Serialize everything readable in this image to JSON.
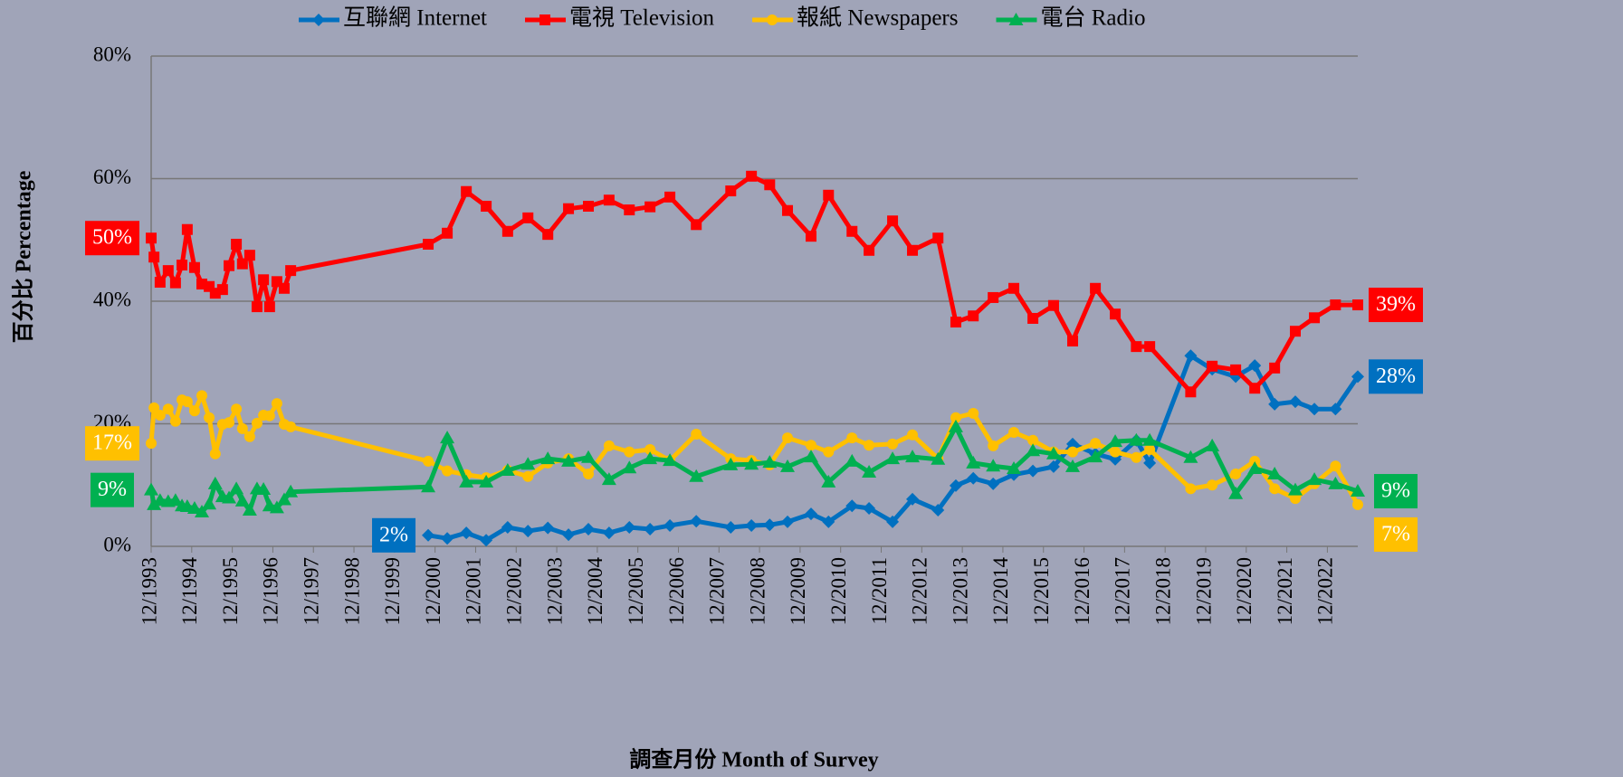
{
  "chart_data": {
    "type": "line",
    "y_label": "百分比 Percentage",
    "x_label": "調查月份 Month of Survey",
    "x": [
      1993.92,
      1993.99,
      1994.14,
      1994.34,
      1994.52,
      1994.68,
      1994.81,
      1994.99,
      1995.17,
      1995.35,
      1995.5,
      1995.68,
      1995.84,
      1996.02,
      1996.17,
      1996.35,
      1996.53,
      1996.69,
      1996.84,
      1997.02,
      1997.2,
      1997.36,
      2000.75,
      2001.22,
      2001.69,
      2002.18,
      2002.71,
      2003.21,
      2003.7,
      2004.21,
      2004.7,
      2005.21,
      2005.71,
      2006.22,
      2006.71,
      2007.36,
      2008.21,
      2008.72,
      2009.17,
      2009.61,
      2010.19,
      2010.62,
      2011.2,
      2011.62,
      2012.2,
      2012.69,
      2013.32,
      2013.76,
      2014.19,
      2014.68,
      2015.19,
      2015.66,
      2016.17,
      2016.64,
      2017.2,
      2017.69,
      2018.21,
      2018.54,
      2019.55,
      2020.08,
      2020.66,
      2021.13,
      2021.62,
      2022.13,
      2022.6,
      2023.12,
      2023.67
    ],
    "xlim": [
      1993.92,
      2023.67
    ],
    "xticks": [
      {
        "value": 1993.92,
        "label": "12/1993"
      },
      {
        "value": 1994.92,
        "label": "12/1994"
      },
      {
        "value": 1995.92,
        "label": "12/1995"
      },
      {
        "value": 1996.92,
        "label": "12/1996"
      },
      {
        "value": 1997.92,
        "label": "12/1997"
      },
      {
        "value": 1998.92,
        "label": "12/1998"
      },
      {
        "value": 1999.92,
        "label": "12/1999"
      },
      {
        "value": 2000.92,
        "label": "12/2000"
      },
      {
        "value": 2001.92,
        "label": "12/2001"
      },
      {
        "value": 2002.92,
        "label": "12/2002"
      },
      {
        "value": 2003.92,
        "label": "12/2003"
      },
      {
        "value": 2004.92,
        "label": "12/2004"
      },
      {
        "value": 2005.92,
        "label": "12/2005"
      },
      {
        "value": 2006.92,
        "label": "12/2006"
      },
      {
        "value": 2007.92,
        "label": "12/2007"
      },
      {
        "value": 2008.92,
        "label": "12/2008"
      },
      {
        "value": 2009.92,
        "label": "12/2009"
      },
      {
        "value": 2010.92,
        "label": "12/2010"
      },
      {
        "value": 2011.92,
        "label": "12/2011"
      },
      {
        "value": 2012.92,
        "label": "12/2012"
      },
      {
        "value": 2013.92,
        "label": "12/2013"
      },
      {
        "value": 2014.92,
        "label": "12/2014"
      },
      {
        "value": 2015.92,
        "label": "12/2015"
      },
      {
        "value": 2016.92,
        "label": "12/2016"
      },
      {
        "value": 2017.92,
        "label": "12/2017"
      },
      {
        "value": 2018.92,
        "label": "12/2018"
      },
      {
        "value": 2019.92,
        "label": "12/2019"
      },
      {
        "value": 2020.92,
        "label": "12/2020"
      },
      {
        "value": 2021.92,
        "label": "12/2021"
      },
      {
        "value": 2022.92,
        "label": "12/2022"
      }
    ],
    "ylim": [
      0,
      80
    ],
    "yticks": [
      {
        "value": 0,
        "label": "0%"
      },
      {
        "value": 20,
        "label": "20%"
      },
      {
        "value": 40,
        "label": "40%"
      },
      {
        "value": 60,
        "label": "60%"
      },
      {
        "value": 80,
        "label": "80%"
      }
    ],
    "grid": true,
    "legend": "top",
    "series": [
      {
        "name": "互聯網 Internet",
        "color": "#0070c0",
        "marker": "diamond",
        "first_label": "2%",
        "last_label": "28%",
        "values": [
          null,
          null,
          null,
          null,
          null,
          null,
          null,
          null,
          null,
          null,
          null,
          null,
          null,
          null,
          null,
          null,
          null,
          null,
          null,
          null,
          null,
          null,
          1.8,
          1.3,
          2.2,
          1.0,
          3.1,
          2.5,
          3.0,
          1.9,
          2.8,
          2.2,
          3.1,
          2.8,
          3.4,
          4.1,
          3.1,
          3.4,
          3.5,
          4.0,
          5.3,
          4.0,
          6.6,
          6.2,
          4.0,
          7.7,
          5.9,
          9.9,
          11.1,
          10.2,
          11.7,
          12.3,
          13.0,
          16.7,
          15.1,
          14.2,
          17.3,
          13.6,
          31.1,
          28.9,
          27.7,
          29.5,
          23.2,
          23.6,
          22.4,
          22.4,
          27.7
        ]
      },
      {
        "name": "電視 Television",
        "color": "#ff0000",
        "marker": "square",
        "first_label": "50%",
        "last_label": "39%",
        "values": [
          50.3,
          47.2,
          43.1,
          45.0,
          43.0,
          45.9,
          51.7,
          45.5,
          42.8,
          42.4,
          41.3,
          41.9,
          45.8,
          49.3,
          46.1,
          47.5,
          39.1,
          43.5,
          39.1,
          43.2,
          42.1,
          45.0,
          49.3,
          51.1,
          57.9,
          55.5,
          51.4,
          53.6,
          50.9,
          55.1,
          55.5,
          56.5,
          54.9,
          55.4,
          57.0,
          52.5,
          58.0,
          60.4,
          59.0,
          54.8,
          50.6,
          57.3,
          51.4,
          48.3,
          53.1,
          48.3,
          50.3,
          36.6,
          37.6,
          40.6,
          42.1,
          37.2,
          39.3,
          33.5,
          42.1,
          37.9,
          32.6,
          32.6,
          25.2,
          29.4,
          28.8,
          25.8,
          29.1,
          35.1,
          37.3,
          39.4,
          39.4
        ]
      },
      {
        "name": "報紙 Newspapers",
        "color": "#ffc000",
        "marker": "circle",
        "first_label": "17%",
        "last_label": "7%",
        "values": [
          16.8,
          22.6,
          21.4,
          22.4,
          20.4,
          23.9,
          23.6,
          22.1,
          24.6,
          21.0,
          15.1,
          19.9,
          20.2,
          22.4,
          19.2,
          17.9,
          20.1,
          21.4,
          21.3,
          23.3,
          19.9,
          19.5,
          13.9,
          12.3,
          11.7,
          11.2,
          12.4,
          11.4,
          13.6,
          14.3,
          11.8,
          16.4,
          15.4,
          15.8,
          14.0,
          18.3,
          14.3,
          14.0,
          13.3,
          17.7,
          16.5,
          15.4,
          17.7,
          16.5,
          16.7,
          18.2,
          14.3,
          21.0,
          21.7,
          16.4,
          18.6,
          17.3,
          15.4,
          15.4,
          16.8,
          15.4,
          14.5,
          15.8,
          9.4,
          10.0,
          11.8,
          13.9,
          9.4,
          7.8,
          10.2,
          13.1,
          6.8
        ]
      },
      {
        "name": "電台 Radio",
        "color": "#00b050",
        "marker": "triangle",
        "first_label": "9%",
        "last_label": "9%",
        "values": [
          9.2,
          6.8,
          7.5,
          7.3,
          7.5,
          6.6,
          6.5,
          6.2,
          5.6,
          6.9,
          10.2,
          8.1,
          7.9,
          9.4,
          7.4,
          5.9,
          9.4,
          9.3,
          6.6,
          6.3,
          7.6,
          8.9,
          9.7,
          17.7,
          10.5,
          10.5,
          12.4,
          13.4,
          14.3,
          13.9,
          14.5,
          10.9,
          12.8,
          14.3,
          14.0,
          11.4,
          13.3,
          13.4,
          13.7,
          13.0,
          14.6,
          10.5,
          13.9,
          12.1,
          14.3,
          14.6,
          14.2,
          19.5,
          13.6,
          13.1,
          12.7,
          15.6,
          15.1,
          13.0,
          14.6,
          17.1,
          17.3,
          17.3,
          14.5,
          16.4,
          8.6,
          12.7,
          11.8,
          9.2,
          10.9,
          10.2,
          9.0
        ]
      }
    ]
  }
}
